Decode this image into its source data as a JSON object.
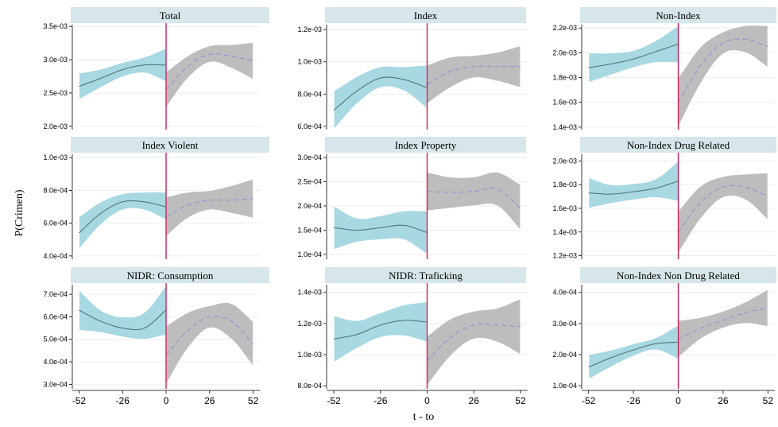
{
  "figure": {
    "ylabel": "P(Crimen)",
    "xlabel": "t - to"
  },
  "colors": {
    "pre_band": "#a8d8e2",
    "post_band": "#bdbdbd",
    "band_edge": "#ffffff",
    "pre_line": "#4a6e6e",
    "post_line": "#8a8ad8",
    "cutoff_line": "#d0205a",
    "strip_bg": "#d6e6ea",
    "grid": "#e9eef0"
  },
  "chart_data": [
    {
      "type": "line",
      "title": "Total",
      "xticks": [
        -52,
        -26,
        0,
        26,
        52
      ],
      "yticks": [
        "2.0e-03",
        "2.5e-03",
        "3.0e-03",
        "3.5e-03"
      ],
      "ylim": [
        0.00195,
        0.00355
      ],
      "xlim": [
        -56,
        56
      ],
      "series": [
        {
          "x": [
            -52,
            -39,
            -26,
            -13,
            0
          ],
          "y": [
            0.0026,
            0.00272,
            0.00285,
            0.00292,
            0.00292
          ],
          "lo": [
            0.0024,
            0.00258,
            0.00274,
            0.0028,
            0.00267
          ],
          "hi": [
            0.0028,
            0.00286,
            0.00296,
            0.00304,
            0.00317
          ]
        },
        {
          "x": [
            0,
            13,
            26,
            39,
            52
          ],
          "y": [
            0.00255,
            0.0029,
            0.00308,
            0.00305,
            0.00298
          ],
          "lo": [
            0.00228,
            0.00272,
            0.00296,
            0.00287,
            0.0027
          ],
          "hi": [
            0.00282,
            0.00306,
            0.00321,
            0.00323,
            0.00326
          ]
        }
      ]
    },
    {
      "type": "line",
      "title": "Index",
      "xticks": [
        -52,
        -26,
        0,
        26,
        52
      ],
      "yticks": [
        "6.0e-04",
        "8.0e-04",
        "1.0e-03",
        "1.2e-03"
      ],
      "ylim": [
        0.00058,
        0.00124
      ],
      "xlim": [
        -56,
        56
      ],
      "series": [
        {
          "x": [
            -52,
            -39,
            -26,
            -13,
            0
          ],
          "y": [
            0.0007,
            0.00082,
            0.0009,
            0.00089,
            0.00084
          ],
          "lo": [
            0.00058,
            0.00074,
            0.00084,
            0.00082,
            0.00071
          ],
          "hi": [
            0.00082,
            0.00091,
            0.00097,
            0.00097,
            0.00098
          ]
        },
        {
          "x": [
            0,
            13,
            26,
            39,
            52
          ],
          "y": [
            0.00086,
            0.00094,
            0.00097,
            0.00097,
            0.00097
          ],
          "lo": [
            0.00074,
            0.00084,
            0.0009,
            0.00088,
            0.00084
          ],
          "hi": [
            0.00098,
            0.00103,
            0.00104,
            0.00106,
            0.0011
          ]
        }
      ]
    },
    {
      "type": "line",
      "title": "Non-Index",
      "xticks": [
        -52,
        -26,
        0,
        26,
        52
      ],
      "yticks": [
        "1.4e-03",
        "1.6e-03",
        "1.8e-03",
        "2.0e-03",
        "2.2e-03"
      ],
      "ylim": [
        0.00138,
        0.00224
      ],
      "xlim": [
        -56,
        56
      ],
      "series": [
        {
          "x": [
            -52,
            -39,
            -26,
            -13,
            0
          ],
          "y": [
            0.00188,
            0.00191,
            0.00195,
            0.00201,
            0.00207
          ],
          "lo": [
            0.00176,
            0.00182,
            0.00188,
            0.00192,
            0.00192
          ],
          "hi": [
            0.002,
            0.002,
            0.00202,
            0.0021,
            0.00222
          ]
        },
        {
          "x": [
            0,
            13,
            26,
            39,
            52
          ],
          "y": [
            0.0016,
            0.0019,
            0.00208,
            0.00211,
            0.00205
          ],
          "lo": [
            0.0014,
            0.00175,
            0.00199,
            0.002,
            0.00188
          ],
          "hi": [
            0.0018,
            0.00205,
            0.00217,
            0.00222,
            0.00222
          ]
        }
      ]
    },
    {
      "type": "line",
      "title": "Index Violent",
      "xticks": [
        -52,
        -26,
        0,
        26,
        52
      ],
      "yticks": [
        "4.0e-04",
        "6.0e-04",
        "8.0e-04",
        "1.0e-03"
      ],
      "ylim": [
        0.00038,
        0.00103
      ],
      "xlim": [
        -56,
        56
      ],
      "series": [
        {
          "x": [
            -52,
            -39,
            -26,
            -13,
            0
          ],
          "y": [
            0.00054,
            0.00066,
            0.00073,
            0.00073,
            0.0007
          ],
          "lo": [
            0.00044,
            0.00059,
            0.00068,
            0.00068,
            0.00062
          ],
          "hi": [
            0.00064,
            0.00073,
            0.00078,
            0.00079,
            0.00079
          ]
        },
        {
          "x": [
            0,
            13,
            26,
            39,
            52
          ],
          "y": [
            0.00064,
            0.00071,
            0.00074,
            0.00074,
            0.00075
          ],
          "lo": [
            0.00052,
            0.00063,
            0.00068,
            0.00066,
            0.00063
          ],
          "hi": [
            0.00076,
            0.00079,
            0.0008,
            0.00083,
            0.00087
          ]
        }
      ]
    },
    {
      "type": "line",
      "title": "Index Property",
      "xticks": [
        -52,
        -26,
        0,
        26,
        52
      ],
      "yticks": [
        "1.0e-04",
        "1.5e-04",
        "2.0e-04",
        "2.5e-04",
        "3.0e-04"
      ],
      "ylim": [
        9e-05,
        0.00031
      ],
      "xlim": [
        -56,
        56
      ],
      "series": [
        {
          "x": [
            -52,
            -39,
            -26,
            -13,
            0
          ],
          "y": [
            0.000155,
            0.00015,
            0.000155,
            0.00016,
            0.000145
          ],
          "lo": [
            0.00011,
            0.000125,
            0.00013,
            0.00013,
            0.0001
          ],
          "hi": [
            0.0002,
            0.000175,
            0.00018,
            0.00019,
            0.00019
          ]
        },
        {
          "x": [
            0,
            13,
            26,
            39,
            52
          ],
          "y": [
            0.00023,
            0.000228,
            0.00023,
            0.000235,
            0.000195
          ],
          "lo": [
            0.00019,
            0.000195,
            0.0002,
            0.0002,
            0.00015
          ],
          "hi": [
            0.00027,
            0.00026,
            0.00026,
            0.00027,
            0.000245
          ]
        }
      ]
    },
    {
      "type": "line",
      "title": "Non-Index Drug Related",
      "xticks": [
        -52,
        -26,
        0,
        26,
        52
      ],
      "yticks": [
        "1.2e-03",
        "1.4e-03",
        "1.6e-03",
        "1.8e-03",
        "2.0e-03"
      ],
      "ylim": [
        0.00117,
        0.00207
      ],
      "xlim": [
        -56,
        56
      ],
      "series": [
        {
          "x": [
            -52,
            -39,
            -26,
            -13,
            0
          ],
          "y": [
            0.00173,
            0.00172,
            0.00174,
            0.00177,
            0.00183
          ],
          "lo": [
            0.0016,
            0.00164,
            0.00167,
            0.00169,
            0.00166
          ],
          "hi": [
            0.00186,
            0.0018,
            0.00181,
            0.00185,
            0.002
          ]
        },
        {
          "x": [
            0,
            13,
            26,
            39,
            52
          ],
          "y": [
            0.0014,
            0.00165,
            0.00178,
            0.00178,
            0.0017
          ],
          "lo": [
            0.00122,
            0.00151,
            0.00169,
            0.00167,
            0.0015
          ],
          "hi": [
            0.00158,
            0.00179,
            0.00187,
            0.00189,
            0.0019
          ]
        }
      ]
    },
    {
      "type": "line",
      "title": "NIDR: Consumption",
      "xticks": [
        -52,
        -26,
        0,
        26,
        52
      ],
      "yticks": [
        "3.0e-04",
        "4.0e-04",
        "5.0e-04",
        "6.0e-04",
        "7.0e-04"
      ],
      "ylim": [
        0.00028,
        0.00075
      ],
      "xlim": [
        -56,
        56
      ],
      "series": [
        {
          "x": [
            -52,
            -39,
            -26,
            -13,
            0
          ],
          "y": [
            0.00063,
            0.00058,
            0.00055,
            0.00055,
            0.00063
          ],
          "lo": [
            0.00054,
            0.00053,
            0.00051,
            0.0005,
            0.00052
          ],
          "hi": [
            0.00072,
            0.00063,
            0.0006,
            0.00062,
            0.00074
          ]
        },
        {
          "x": [
            0,
            13,
            26,
            39,
            52
          ],
          "y": [
            0.00043,
            0.00054,
            0.0006,
            0.00058,
            0.00048
          ],
          "lo": [
            0.0003,
            0.00046,
            0.00055,
            0.0005,
            0.00038
          ],
          "hi": [
            0.00056,
            0.00062,
            0.00065,
            0.00066,
            0.00058
          ]
        }
      ]
    },
    {
      "type": "line",
      "title": "NIDR: Traficking",
      "xticks": [
        -52,
        -26,
        0,
        26,
        52
      ],
      "yticks": [
        "8.0e-04",
        "1.0e-03",
        "1.2e-03",
        "1.4e-03"
      ],
      "ylim": [
        0.00078,
        0.00146
      ],
      "xlim": [
        -56,
        56
      ],
      "series": [
        {
          "x": [
            -52,
            -39,
            -26,
            -13,
            0
          ],
          "y": [
            0.0011,
            0.00113,
            0.00119,
            0.00122,
            0.00121
          ],
          "lo": [
            0.00095,
            0.00104,
            0.00111,
            0.00112,
            0.00108
          ],
          "hi": [
            0.00125,
            0.00122,
            0.00127,
            0.00132,
            0.00134
          ]
        },
        {
          "x": [
            0,
            13,
            26,
            39,
            52
          ],
          "y": [
            0.00096,
            0.00111,
            0.00119,
            0.00119,
            0.00118
          ],
          "lo": [
            0.0008,
            0.00099,
            0.0011,
            0.00108,
            0.001
          ],
          "hi": [
            0.00112,
            0.00123,
            0.00128,
            0.0013,
            0.00136
          ]
        }
      ]
    },
    {
      "type": "line",
      "title": "Non-Index Non Drug Related",
      "xticks": [
        -52,
        -26,
        0,
        26,
        52
      ],
      "yticks": [
        "1.0e-04",
        "2.0e-04",
        "3.0e-04",
        "4.0e-04"
      ],
      "ylim": [
        9e-05,
        0.00043
      ],
      "xlim": [
        -56,
        56
      ],
      "series": [
        {
          "x": [
            -52,
            -39,
            -26,
            -13,
            0
          ],
          "y": [
            0.00016,
            0.00019,
            0.000215,
            0.000235,
            0.00024
          ],
          "lo": [
            0.00012,
            0.00016,
            0.000195,
            0.000215,
            0.000185
          ],
          "hi": [
            0.0002,
            0.000215,
            0.000235,
            0.000255,
            0.000295
          ]
        },
        {
          "x": [
            0,
            13,
            26,
            39,
            52
          ],
          "y": [
            0.00025,
            0.000285,
            0.00031,
            0.000335,
            0.00035
          ],
          "lo": [
            0.00019,
            0.00025,
            0.000285,
            0.0003,
            0.00029
          ],
          "hi": [
            0.00031,
            0.00032,
            0.00034,
            0.00037,
            0.00041
          ]
        }
      ]
    }
  ]
}
